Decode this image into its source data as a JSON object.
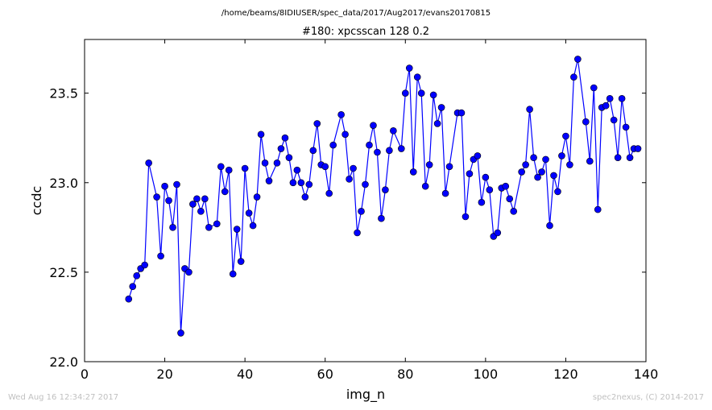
{
  "chart_data": {
    "type": "line",
    "suptitle": "/home/beams/8IDIUSER/spec_data/2017/Aug2017/evans20170815",
    "title": "#180: xpcsscan 128 0.2",
    "xlabel": "img_n",
    "ylabel": "ccdc",
    "xlim": [
      0,
      140
    ],
    "ylim": [
      22.0,
      23.8
    ],
    "xticks": [
      0,
      20,
      40,
      60,
      80,
      100,
      120,
      140
    ],
    "yticks": [
      22.0,
      22.5,
      23.0,
      23.5
    ],
    "grid": false,
    "color": "#0000ff",
    "marker": "circle",
    "series": [
      {
        "x": [
          11,
          12,
          13,
          14,
          15,
          16,
          18,
          19,
          20,
          21,
          22,
          23,
          24,
          25,
          26,
          27,
          28,
          29,
          30,
          31,
          33,
          34,
          35,
          36,
          37,
          38,
          39,
          40,
          41,
          42,
          43,
          44,
          45,
          46,
          48,
          49,
          50,
          51,
          52,
          53,
          54,
          55,
          56,
          57,
          58,
          59,
          60,
          61,
          62,
          64,
          65,
          66,
          67,
          68,
          69,
          70,
          71,
          72,
          73,
          74,
          75,
          76,
          77,
          79,
          80,
          81,
          82,
          83,
          84,
          85,
          86,
          87,
          88,
          89,
          90,
          91,
          93,
          94,
          95,
          96,
          97,
          98,
          99,
          100,
          101,
          102,
          103,
          104,
          105,
          106,
          107,
          109,
          110,
          111,
          112,
          113,
          114,
          115,
          116,
          117,
          118,
          119,
          120,
          121,
          122,
          123,
          125,
          126,
          127,
          128,
          129,
          130,
          131,
          132,
          133,
          134,
          135,
          136,
          137,
          138
        ],
        "y": [
          22.35,
          22.42,
          22.48,
          22.52,
          22.54,
          23.11,
          22.92,
          22.59,
          22.98,
          22.9,
          22.75,
          22.99,
          22.16,
          22.52,
          22.5,
          22.88,
          22.91,
          22.84,
          22.91,
          22.75,
          22.77,
          23.09,
          22.95,
          23.07,
          22.49,
          22.74,
          22.56,
          23.08,
          22.83,
          22.76,
          22.92,
          23.27,
          23.11,
          23.01,
          23.11,
          23.19,
          23.25,
          23.14,
          23.0,
          23.07,
          23.0,
          22.92,
          22.99,
          23.18,
          23.33,
          23.1,
          23.09,
          22.94,
          23.21,
          23.38,
          23.27,
          23.02,
          23.08,
          22.72,
          22.84,
          22.99,
          23.21,
          23.32,
          23.17,
          22.8,
          22.96,
          23.18,
          23.29,
          23.19,
          23.5,
          23.64,
          23.06,
          23.59,
          23.5,
          22.98,
          23.1,
          23.49,
          23.33,
          23.42,
          22.94,
          23.09,
          23.39,
          23.39,
          22.81,
          23.05,
          23.13,
          23.15,
          22.89,
          23.03,
          22.96,
          22.7,
          22.72,
          22.97,
          22.98,
          22.91,
          22.84,
          23.06,
          23.1,
          23.41,
          23.14,
          23.03,
          23.06,
          23.13,
          22.76,
          23.04,
          22.95,
          23.15,
          23.26,
          23.1,
          23.59,
          23.69,
          23.34,
          23.12,
          23.53,
          22.85,
          23.42,
          23.43,
          23.47,
          23.35,
          23.14,
          23.47,
          23.31,
          23.14,
          23.19,
          23.19
        ]
      }
    ]
  },
  "footer": {
    "timestamp": "Wed Aug 16 12:34:27 2017",
    "credit": "spec2nexus, (C) 2014-2017"
  }
}
